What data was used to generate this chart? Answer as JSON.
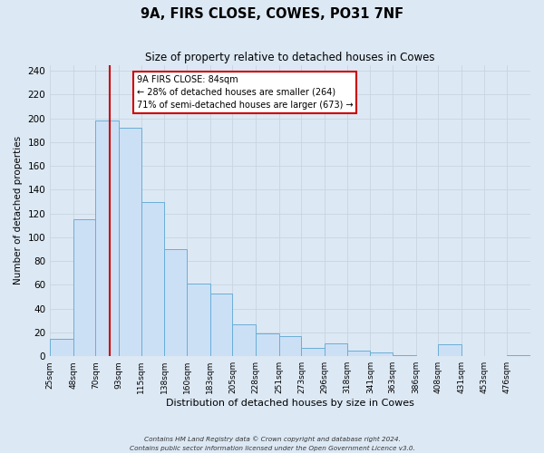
{
  "title": "9A, FIRS CLOSE, COWES, PO31 7NF",
  "subtitle": "Size of property relative to detached houses in Cowes",
  "xlabel": "Distribution of detached houses by size in Cowes",
  "ylabel": "Number of detached properties",
  "bar_labels": [
    "25sqm",
    "48sqm",
    "70sqm",
    "93sqm",
    "115sqm",
    "138sqm",
    "160sqm",
    "183sqm",
    "205sqm",
    "228sqm",
    "251sqm",
    "273sqm",
    "296sqm",
    "318sqm",
    "341sqm",
    "363sqm",
    "386sqm",
    "408sqm",
    "431sqm",
    "453sqm",
    "476sqm"
  ],
  "bar_values": [
    15,
    115,
    198,
    192,
    130,
    90,
    61,
    53,
    27,
    19,
    17,
    7,
    11,
    5,
    3,
    1,
    0,
    10,
    0,
    0,
    1
  ],
  "bar_color": "#cce0f5",
  "bar_edge_color": "#6aaed6",
  "bin_edges": [
    25,
    48,
    70,
    93,
    115,
    138,
    160,
    183,
    205,
    228,
    251,
    273,
    296,
    318,
    341,
    363,
    386,
    408,
    431,
    453,
    476,
    499
  ],
  "vline_x": 84,
  "vline_color": "#cc0000",
  "annotation_text_line1": "9A FIRS CLOSE: 84sqm",
  "annotation_text_line2": "← 28% of detached houses are smaller (264)",
  "annotation_text_line3": "71% of semi-detached houses are larger (673) →",
  "ylim": [
    0,
    245
  ],
  "yticks": [
    0,
    20,
    40,
    60,
    80,
    100,
    120,
    140,
    160,
    180,
    200,
    220,
    240
  ],
  "grid_color": "#c8d4e0",
  "background_color": "#dce8f4",
  "plot_bg_color": "#dce8f4",
  "footer_line1": "Contains HM Land Registry data © Crown copyright and database right 2024.",
  "footer_line2": "Contains public sector information licensed under the Open Government Licence v3.0."
}
